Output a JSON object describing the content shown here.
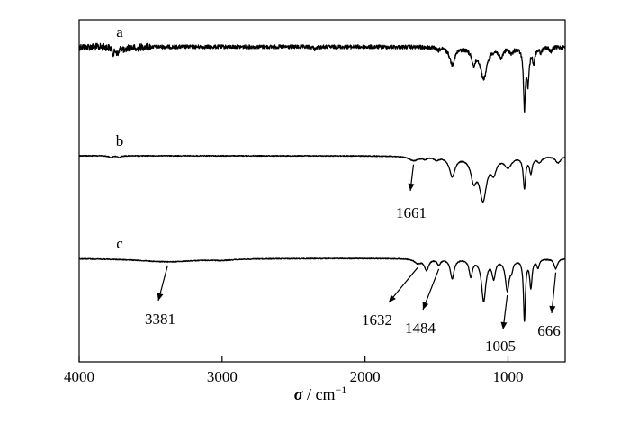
{
  "chart_data": {
    "type": "line",
    "title": "",
    "xlabel": "σ / cm⁻¹",
    "xlabel_parts": {
      "symbol": "σ",
      "unit": " / cm",
      "exponent": "−1"
    },
    "ylabel": "",
    "xlim": [
      4000,
      600
    ],
    "x_reversed": true,
    "y_axis_ticks": false,
    "grid": false,
    "xticks": [
      {
        "value": 4000,
        "label": "4000"
      },
      {
        "value": 3000,
        "label": "3000"
      },
      {
        "value": 2000,
        "label": "2000"
      },
      {
        "value": 1000,
        "label": "1000"
      }
    ],
    "series": [
      {
        "name": "a",
        "offset": 2.0,
        "noise": 0.035,
        "peaks": [
          [
            3760,
            0.1,
            12
          ],
          [
            3730,
            0.12,
            10
          ],
          [
            3680,
            0.08,
            10
          ],
          [
            3600,
            0.05,
            10
          ],
          [
            2350,
            0.04,
            12
          ],
          [
            1490,
            0.05,
            12
          ],
          [
            1390,
            0.3,
            22
          ],
          [
            1240,
            0.25,
            18
          ],
          [
            1170,
            0.55,
            28
          ],
          [
            1050,
            0.18,
            16
          ],
          [
            975,
            0.1,
            14
          ],
          [
            885,
            1.05,
            8
          ],
          [
            860,
            0.6,
            10
          ],
          [
            820,
            0.25,
            10
          ],
          [
            770,
            0.08,
            10
          ],
          [
            700,
            0.08,
            10
          ]
        ]
      },
      {
        "name": "b",
        "offset": 1.0,
        "noise": 0.008,
        "peaks": [
          [
            3780,
            0.03,
            14
          ],
          [
            3720,
            0.03,
            14
          ],
          [
            1661,
            0.08,
            40
          ],
          [
            1580,
            0.04,
            20
          ],
          [
            1500,
            0.06,
            20
          ],
          [
            1390,
            0.35,
            24
          ],
          [
            1240,
            0.38,
            24
          ],
          [
            1175,
            0.75,
            30
          ],
          [
            1100,
            0.25,
            22
          ],
          [
            1000,
            0.18,
            30
          ],
          [
            885,
            0.55,
            10
          ],
          [
            840,
            0.28,
            12
          ],
          [
            780,
            0.1,
            20
          ],
          [
            650,
            0.12,
            22
          ]
        ]
      },
      {
        "name": "c",
        "offset": 0.0,
        "noise": 0.008,
        "peaks": [
          [
            3381,
            0.06,
            250
          ],
          [
            3000,
            0.02,
            90
          ],
          [
            1632,
            0.08,
            26
          ],
          [
            1570,
            0.2,
            18
          ],
          [
            1484,
            0.1,
            14
          ],
          [
            1390,
            0.35,
            16
          ],
          [
            1260,
            0.3,
            14
          ],
          [
            1170,
            0.75,
            18
          ],
          [
            1100,
            0.32,
            14
          ],
          [
            1005,
            0.55,
            16
          ],
          [
            975,
            0.15,
            12
          ],
          [
            885,
            1.1,
            8
          ],
          [
            840,
            0.5,
            10
          ],
          [
            790,
            0.15,
            10
          ],
          [
            666,
            0.18,
            14
          ]
        ]
      }
    ],
    "annotations": [
      {
        "series": "b",
        "x": 1661,
        "text": "1661"
      },
      {
        "series": "c",
        "x": 3381,
        "text": "3381"
      },
      {
        "series": "c",
        "x": 1632,
        "text": "1632"
      },
      {
        "series": "c",
        "x": 1484,
        "text": "1484"
      },
      {
        "series": "c",
        "x": 1005,
        "text": "1005"
      },
      {
        "series": "c",
        "x": 666,
        "text": "666"
      }
    ]
  }
}
